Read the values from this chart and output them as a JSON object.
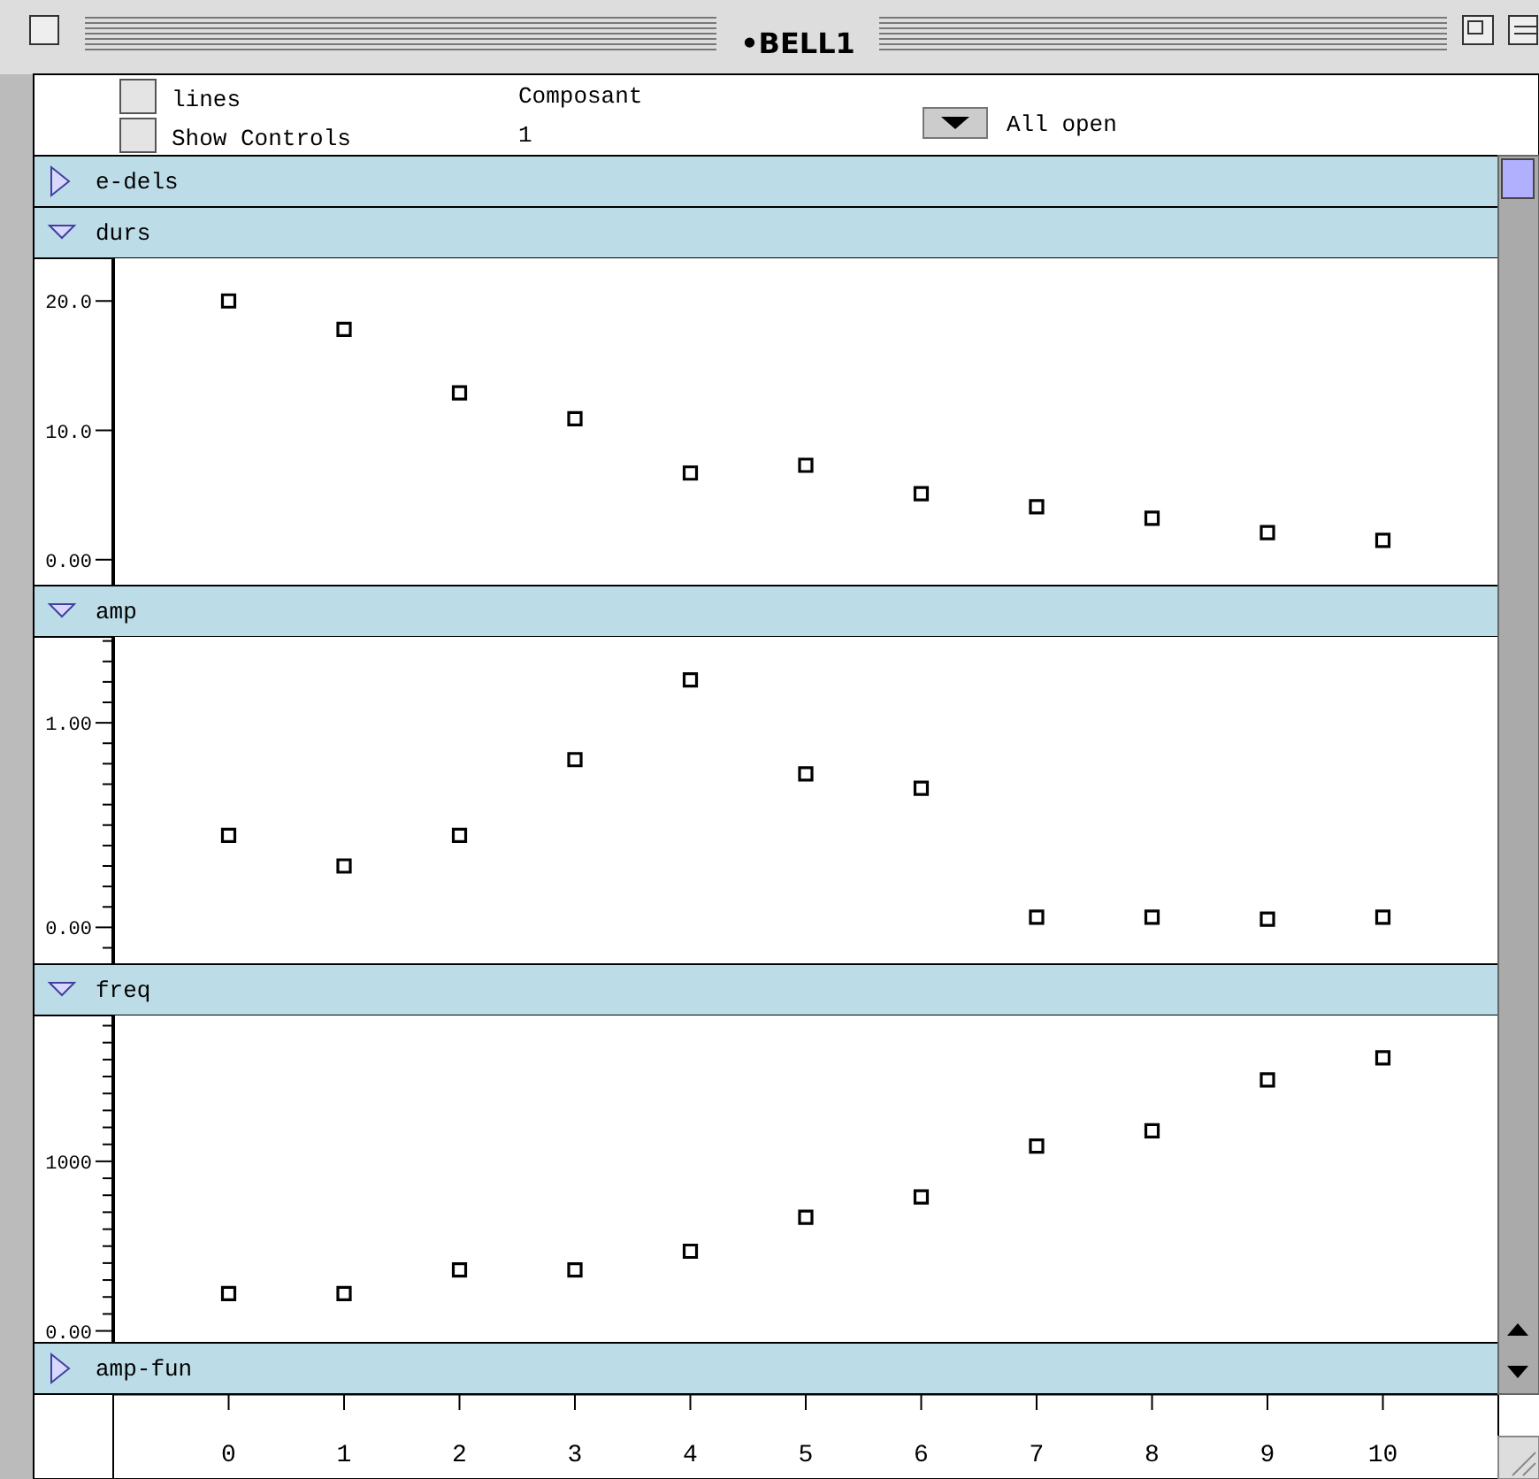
{
  "chart_data": [
    {
      "type": "other",
      "title": "•BELL1",
      "annotations": [
        "lines",
        "Show Controls",
        "Composant",
        "1",
        "All open"
      ]
    },
    {
      "type": "other",
      "title": "e-dels"
    },
    {
      "type": "scatter",
      "title": "durs",
      "x": [
        0,
        1,
        2,
        3,
        4,
        5,
        6,
        7,
        8,
        9,
        10
      ],
      "values": [
        20.0,
        17.8,
        12.9,
        10.9,
        6.7,
        7.3,
        5.1,
        4.1,
        3.2,
        2.1,
        1.5
      ],
      "color": "#000000",
      "marker": "square",
      "xlim": [
        -1,
        11
      ],
      "ylim": [
        -2,
        23.3
      ],
      "yticks": [
        {
          "value": 0,
          "label": "0.00"
        },
        {
          "value": 10,
          "label": "10.0"
        },
        {
          "value": 20,
          "label": "20.0"
        }
      ],
      "tick_labels": "y"
    },
    {
      "type": "scatter",
      "title": "amp",
      "x": [
        0,
        1,
        2,
        3,
        4,
        5,
        6,
        7,
        8,
        9,
        10
      ],
      "values": [
        0.45,
        0.3,
        0.45,
        0.82,
        1.21,
        0.75,
        0.68,
        0.05,
        0.05,
        0.04,
        0.05
      ],
      "color": "#000000",
      "marker": "square",
      "xlim": [
        -1,
        11
      ],
      "ylim": [
        -0.18,
        1.42
      ],
      "yticks": [
        {
          "value": -0.1,
          "label": null
        },
        {
          "value": 0,
          "label": "0.00"
        },
        {
          "value": 0.1,
          "label": null
        },
        {
          "value": 0.2,
          "label": null
        },
        {
          "value": 0.3,
          "label": null
        },
        {
          "value": 0.4,
          "label": null
        },
        {
          "value": 0.5,
          "label": null
        },
        {
          "value": 0.6,
          "label": null
        },
        {
          "value": 0.7,
          "label": null
        },
        {
          "value": 0.8,
          "label": null
        },
        {
          "value": 0.9,
          "label": null
        },
        {
          "value": 1,
          "label": "1.00"
        },
        {
          "value": 1.1,
          "label": null
        },
        {
          "value": 1.2,
          "label": null
        },
        {
          "value": 1.3,
          "label": null
        },
        {
          "value": 1.4,
          "label": null
        }
      ],
      "tick_labels": "y"
    },
    {
      "type": "scatter",
      "title": "freq",
      "x": [
        0,
        1,
        2,
        3,
        4,
        5,
        6,
        7,
        8,
        9,
        10
      ],
      "values": [
        220,
        220,
        360,
        360,
        470,
        670,
        790,
        1090,
        1180,
        1480,
        1610
      ],
      "color": "#000000",
      "marker": "square",
      "xlim": [
        -1,
        11
      ],
      "ylim": [
        -70,
        1860
      ],
      "xticks": [
        0,
        1,
        2,
        3,
        4,
        5,
        6,
        7,
        8,
        9,
        10
      ],
      "yticks": [
        {
          "value": 0,
          "label": "0.00"
        },
        {
          "value": 100,
          "label": null
        },
        {
          "value": 200,
          "label": null
        },
        {
          "value": 300,
          "label": null
        },
        {
          "value": 400,
          "label": null
        },
        {
          "value": 500,
          "label": null
        },
        {
          "value": 600,
          "label": null
        },
        {
          "value": 700,
          "label": null
        },
        {
          "value": 800,
          "label": null
        },
        {
          "value": 900,
          "label": null
        },
        {
          "value": 1000,
          "label": "1000"
        },
        {
          "value": 1100,
          "label": null
        },
        {
          "value": 1200,
          "label": null
        },
        {
          "value": 1300,
          "label": null
        },
        {
          "value": 1400,
          "label": null
        },
        {
          "value": 1500,
          "label": null
        },
        {
          "value": 1600,
          "label": null
        },
        {
          "value": 1700,
          "label": null
        },
        {
          "value": 1800,
          "label": null
        }
      ]
    },
    {
      "type": "other",
      "title": "amp-fun"
    }
  ]
}
